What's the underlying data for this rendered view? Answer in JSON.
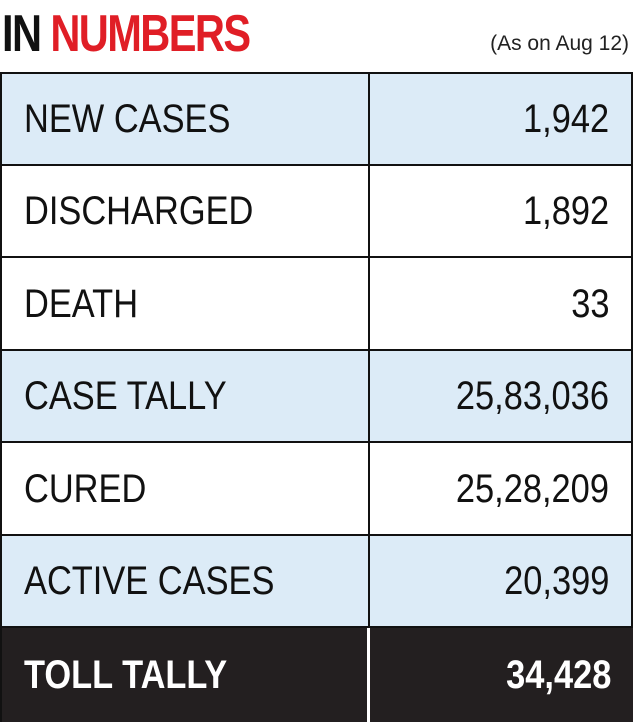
{
  "header": {
    "title_part1": "IN",
    "title_part2": "NUMBERS",
    "as_of": "(As on Aug 12)"
  },
  "rows": [
    {
      "label": "NEW CASES",
      "value": "1,942"
    },
    {
      "label": "DISCHARGED",
      "value": "1,892"
    },
    {
      "label": "DEATH",
      "value": "33"
    },
    {
      "label": "CASE TALLY",
      "value": "25,83,036"
    },
    {
      "label": "CURED",
      "value": "25,28,209"
    },
    {
      "label": "ACTIVE CASES",
      "value": "20,399"
    },
    {
      "label": "TOLL TALLY",
      "value": "34,428"
    }
  ],
  "colors": {
    "accent_red": "#e01e26",
    "row_blue": "#dcebf7",
    "total_row_bg": "#231f20",
    "text": "#111111"
  }
}
